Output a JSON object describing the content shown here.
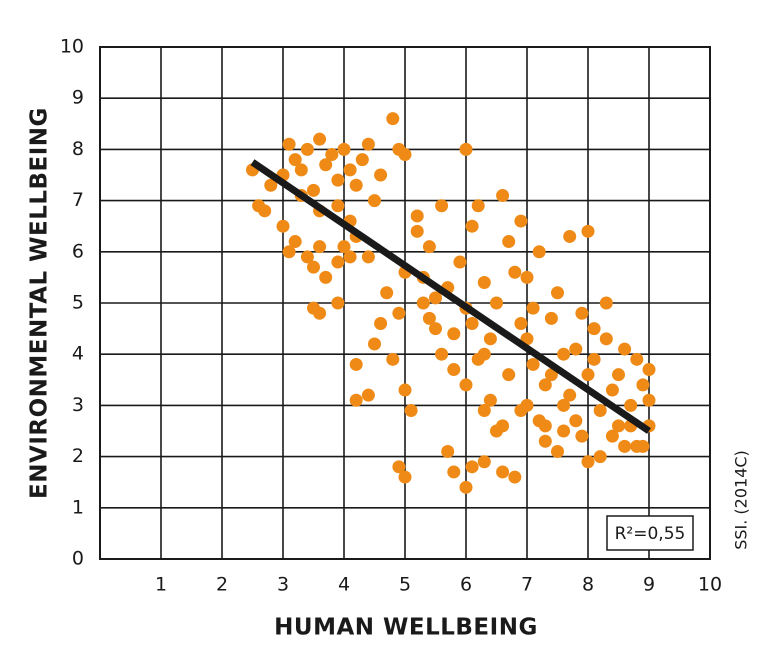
{
  "chart_data": {
    "type": "scatter",
    "x_label": "HUMAN WELLBEING",
    "y_label": "ENVIRONMENTAL WELLBEING",
    "xlim": [
      0,
      10
    ],
    "ylim": [
      0,
      10
    ],
    "xticks": [
      1,
      2,
      3,
      4,
      5,
      6,
      7,
      8,
      9,
      10
    ],
    "yticks": [
      0,
      1,
      2,
      3,
      4,
      5,
      6,
      7,
      8,
      9,
      10
    ],
    "grid": true,
    "series": [
      {
        "color": "#ef8a17",
        "x": [
          2.5,
          2.6,
          2.7,
          2.8,
          3.0,
          3.1,
          3.2,
          3.3,
          3.4,
          3.5,
          3.6,
          3.7,
          3.8,
          3.9,
          4.0,
          4.1,
          4.2,
          4.3,
          4.4,
          4.5,
          3.3,
          3.6,
          3.9,
          4.1,
          4.6,
          4.8,
          4.9,
          5.0,
          3.0,
          3.2,
          3.4,
          3.6,
          3.5,
          3.7,
          3.9,
          4.1,
          3.5,
          3.6,
          3.9,
          3.1,
          4.2,
          4.4,
          4.0,
          4.2,
          4.2,
          4.4,
          4.5,
          4.6,
          4.7,
          4.8,
          4.9,
          5.0,
          5.1,
          5.0,
          5.2,
          5.3,
          5.4,
          5.5,
          5.6,
          5.7,
          5.8,
          5.9,
          6.0,
          6.0,
          6.1,
          6.2,
          6.3,
          6.4,
          6.5,
          6.6,
          6.7,
          6.8,
          6.9,
          5.2,
          5.4,
          5.6,
          5.8,
          6.0,
          6.2,
          6.4,
          6.5,
          6.7,
          6.9,
          4.9,
          5.0,
          5.7,
          5.8,
          6.0,
          6.1,
          6.3,
          6.6,
          6.8,
          6.3,
          6.6,
          5.3,
          5.5,
          6.1,
          6.3,
          7.0,
          7.1,
          7.2,
          7.3,
          7.4,
          7.5,
          7.6,
          7.7,
          7.8,
          7.9,
          8.0,
          8.0,
          8.1,
          8.2,
          8.3,
          8.4,
          8.5,
          8.6,
          8.7,
          8.8,
          8.9,
          9.0,
          9.0,
          9.0,
          7.0,
          7.2,
          7.3,
          7.5,
          7.6,
          7.8,
          8.0,
          8.2,
          8.4,
          8.6,
          8.8,
          7.1,
          7.4,
          7.7,
          7.9,
          8.1,
          8.3,
          8.5,
          8.7,
          8.9,
          6.9,
          7.0,
          7.3,
          7.6
        ],
        "y": [
          7.6,
          6.9,
          6.8,
          7.3,
          7.5,
          8.1,
          7.8,
          7.6,
          8.0,
          7.2,
          8.2,
          7.7,
          7.9,
          7.4,
          8.0,
          7.6,
          7.3,
          7.8,
          8.1,
          7.0,
          7.1,
          6.8,
          6.9,
          6.6,
          7.5,
          8.6,
          8.0,
          7.9,
          6.5,
          6.2,
          5.9,
          6.1,
          5.7,
          5.5,
          5.8,
          5.9,
          4.9,
          4.8,
          5.0,
          6.0,
          6.3,
          5.9,
          6.1,
          3.8,
          3.1,
          3.2,
          4.2,
          4.6,
          5.2,
          3.9,
          4.8,
          3.3,
          2.9,
          5.6,
          6.4,
          5.5,
          4.7,
          5.1,
          6.9,
          5.3,
          4.4,
          5.8,
          8.0,
          4.9,
          6.5,
          6.9,
          5.4,
          4.3,
          5.0,
          7.1,
          6.2,
          5.6,
          4.6,
          6.7,
          6.1,
          4.0,
          3.7,
          3.4,
          3.9,
          3.1,
          2.5,
          3.6,
          2.9,
          1.8,
          1.6,
          2.1,
          1.7,
          1.4,
          1.8,
          1.9,
          1.7,
          1.6,
          2.9,
          2.6,
          5.0,
          4.5,
          4.6,
          4.0,
          4.3,
          3.8,
          2.7,
          3.4,
          4.7,
          5.2,
          3.0,
          6.3,
          4.1,
          2.4,
          6.4,
          3.6,
          4.5,
          2.9,
          5.0,
          3.3,
          2.6,
          4.1,
          3.0,
          2.2,
          3.4,
          3.7,
          2.6,
          3.1,
          5.5,
          6.0,
          2.3,
          2.1,
          4.0,
          2.7,
          1.9,
          2.0,
          2.4,
          2.2,
          3.9,
          4.9,
          3.6,
          3.2,
          4.8,
          3.9,
          4.3,
          3.6,
          2.6,
          2.2,
          6.6,
          3.0,
          2.6,
          2.5
        ]
      }
    ],
    "trend_line": {
      "color": "#1a1a1a",
      "x": [
        2.5,
        9.0
      ],
      "y": [
        7.75,
        2.5
      ]
    },
    "annotation": "R²=0,55",
    "source": "SSI. (2014C)"
  }
}
